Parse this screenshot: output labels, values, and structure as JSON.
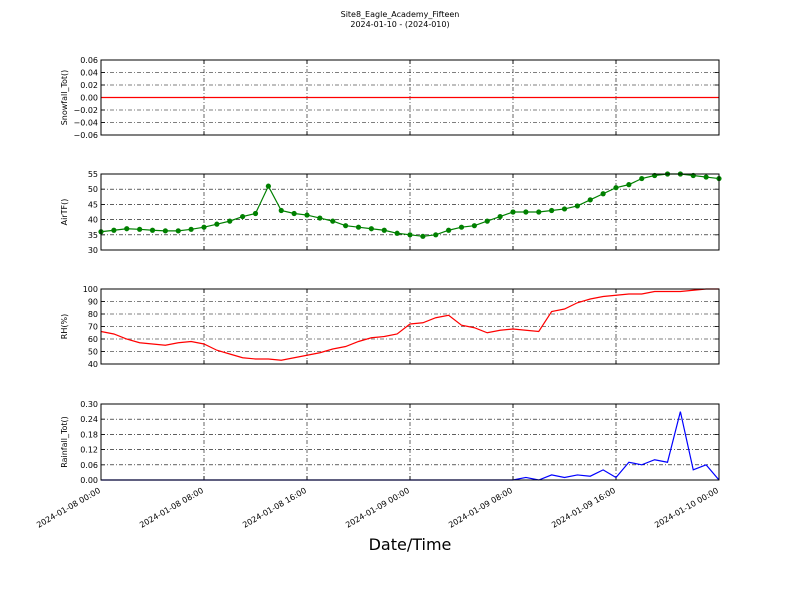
{
  "title": "Site8_Eagle_Academy_Fifteen",
  "subtitle": "2024-01-10 - (2024-010)",
  "chart_data": [
    {
      "type": "line",
      "ylabel": "Snowfall_Tot()",
      "color": "#ff0000",
      "grid": true,
      "x": [
        "2024-01-08 00:00",
        "2024-01-10 00:00"
      ],
      "values": [
        0,
        0
      ],
      "xlim": [
        "2024-01-08 00:00",
        "2024-01-10 00:00"
      ],
      "ylim": [
        -0.06,
        0.06
      ],
      "yticks": [
        {
          "value": -0.06,
          "label": "−0.06"
        },
        {
          "value": -0.04,
          "label": "−0.04"
        },
        {
          "value": -0.02,
          "label": "−0.02"
        },
        {
          "value": 0,
          "label": "0.00"
        },
        {
          "value": 0.02,
          "label": "0.02"
        },
        {
          "value": 0.04,
          "label": "0.04"
        },
        {
          "value": 0.06,
          "label": "0.06"
        }
      ]
    },
    {
      "type": "line",
      "ylabel": "AirTF()",
      "color": "#008000",
      "marker": "o",
      "grid": true,
      "x": [
        "2024-01-08 00:00",
        "2024-01-08 01:00",
        "2024-01-08 02:00",
        "2024-01-08 03:00",
        "2024-01-08 04:00",
        "2024-01-08 05:00",
        "2024-01-08 06:00",
        "2024-01-08 07:00",
        "2024-01-08 08:00",
        "2024-01-08 09:00",
        "2024-01-08 10:00",
        "2024-01-08 11:00",
        "2024-01-08 12:00",
        "2024-01-08 13:00",
        "2024-01-08 14:00",
        "2024-01-08 15:00",
        "2024-01-08 16:00",
        "2024-01-08 17:00",
        "2024-01-08 18:00",
        "2024-01-08 19:00",
        "2024-01-08 20:00",
        "2024-01-08 21:00",
        "2024-01-08 22:00",
        "2024-01-08 23:00",
        "2024-01-09 00:00",
        "2024-01-09 01:00",
        "2024-01-09 02:00",
        "2024-01-09 03:00",
        "2024-01-09 04:00",
        "2024-01-09 05:00",
        "2024-01-09 06:00",
        "2024-01-09 07:00",
        "2024-01-09 08:00",
        "2024-01-09 09:00",
        "2024-01-09 10:00",
        "2024-01-09 11:00",
        "2024-01-09 12:00",
        "2024-01-09 13:00",
        "2024-01-09 14:00",
        "2024-01-09 15:00",
        "2024-01-09 16:00",
        "2024-01-09 17:00",
        "2024-01-09 18:00",
        "2024-01-09 19:00",
        "2024-01-09 20:00",
        "2024-01-09 21:00",
        "2024-01-09 22:00",
        "2024-01-09 23:00",
        "2024-01-10 00:00"
      ],
      "values": [
        36,
        36.5,
        37,
        36.8,
        36.5,
        36.3,
        36.3,
        36.8,
        37.5,
        38.5,
        39.5,
        41,
        42,
        51,
        43,
        42,
        41.5,
        40.5,
        39.5,
        38,
        37.5,
        37,
        36.5,
        35.5,
        35,
        34.5,
        35,
        36.5,
        37.5,
        38,
        39.5,
        41,
        42.5,
        42.5,
        42.5,
        43,
        43.5,
        44.5,
        46.5,
        48.5,
        50.5,
        51.5,
        53.5,
        54.5,
        55,
        55,
        54.5,
        54,
        53.5
      ],
      "xlim": [
        "2024-01-08 00:00",
        "2024-01-10 00:00"
      ],
      "ylim": [
        30,
        55
      ],
      "yticks": [
        30,
        35,
        40,
        45,
        50,
        55
      ]
    },
    {
      "type": "line",
      "ylabel": "RH(%)",
      "color": "#ff0000",
      "grid": true,
      "x": [
        "2024-01-08 00:00",
        "2024-01-08 01:00",
        "2024-01-08 02:00",
        "2024-01-08 03:00",
        "2024-01-08 04:00",
        "2024-01-08 05:00",
        "2024-01-08 06:00",
        "2024-01-08 07:00",
        "2024-01-08 08:00",
        "2024-01-08 09:00",
        "2024-01-08 10:00",
        "2024-01-08 11:00",
        "2024-01-08 12:00",
        "2024-01-08 13:00",
        "2024-01-08 14:00",
        "2024-01-08 15:00",
        "2024-01-08 16:00",
        "2024-01-08 17:00",
        "2024-01-08 18:00",
        "2024-01-08 19:00",
        "2024-01-08 20:00",
        "2024-01-08 21:00",
        "2024-01-08 22:00",
        "2024-01-08 23:00",
        "2024-01-09 00:00",
        "2024-01-09 01:00",
        "2024-01-09 02:00",
        "2024-01-09 03:00",
        "2024-01-09 04:00",
        "2024-01-09 05:00",
        "2024-01-09 06:00",
        "2024-01-09 07:00",
        "2024-01-09 08:00",
        "2024-01-09 09:00",
        "2024-01-09 10:00",
        "2024-01-09 11:00",
        "2024-01-09 12:00",
        "2024-01-09 13:00",
        "2024-01-09 14:00",
        "2024-01-09 15:00",
        "2024-01-09 16:00",
        "2024-01-09 17:00",
        "2024-01-09 18:00",
        "2024-01-09 19:00",
        "2024-01-09 20:00",
        "2024-01-09 21:00",
        "2024-01-09 22:00",
        "2024-01-09 23:00",
        "2024-01-10 00:00"
      ],
      "values": [
        66,
        64,
        60,
        57,
        56,
        55,
        57,
        58,
        56,
        51,
        48,
        45,
        44,
        44,
        43,
        45,
        47,
        49,
        52,
        54,
        58,
        61,
        62,
        64,
        72,
        73,
        77,
        79,
        71,
        69,
        65,
        67,
        68,
        67,
        66,
        82,
        84,
        89,
        92,
        94,
        95,
        96,
        96,
        98,
        98,
        98,
        99,
        100,
        100
      ],
      "xlim": [
        "2024-01-08 00:00",
        "2024-01-10 00:00"
      ],
      "ylim": [
        40,
        100
      ],
      "yticks": [
        40,
        50,
        60,
        70,
        80,
        90,
        100
      ]
    },
    {
      "type": "line",
      "ylabel": "Rainfall_Tot()",
      "xlabel": "Date/Time",
      "color": "#0000ff",
      "grid": true,
      "x": [
        "2024-01-08 00:00",
        "2024-01-08 01:00",
        "2024-01-08 02:00",
        "2024-01-08 03:00",
        "2024-01-08 04:00",
        "2024-01-08 05:00",
        "2024-01-08 06:00",
        "2024-01-08 07:00",
        "2024-01-08 08:00",
        "2024-01-08 09:00",
        "2024-01-08 10:00",
        "2024-01-08 11:00",
        "2024-01-08 12:00",
        "2024-01-08 13:00",
        "2024-01-08 14:00",
        "2024-01-08 15:00",
        "2024-01-08 16:00",
        "2024-01-08 17:00",
        "2024-01-08 18:00",
        "2024-01-08 19:00",
        "2024-01-08 20:00",
        "2024-01-08 21:00",
        "2024-01-08 22:00",
        "2024-01-08 23:00",
        "2024-01-09 00:00",
        "2024-01-09 01:00",
        "2024-01-09 02:00",
        "2024-01-09 03:00",
        "2024-01-09 04:00",
        "2024-01-09 05:00",
        "2024-01-09 06:00",
        "2024-01-09 07:00",
        "2024-01-09 08:00",
        "2024-01-09 09:00",
        "2024-01-09 10:00",
        "2024-01-09 11:00",
        "2024-01-09 12:00",
        "2024-01-09 13:00",
        "2024-01-09 14:00",
        "2024-01-09 15:00",
        "2024-01-09 16:00",
        "2024-01-09 17:00",
        "2024-01-09 18:00",
        "2024-01-09 19:00",
        "2024-01-09 20:00",
        "2024-01-09 21:00",
        "2024-01-09 22:00",
        "2024-01-09 23:00",
        "2024-01-10 00:00"
      ],
      "values": [
        0,
        0,
        0,
        0,
        0,
        0,
        0,
        0,
        0,
        0,
        0,
        0,
        0,
        0,
        0,
        0,
        0,
        0,
        0,
        0,
        0,
        0,
        0,
        0,
        0,
        0,
        0,
        0,
        0,
        0,
        0,
        0,
        0,
        0.01,
        0,
        0.02,
        0.01,
        0.02,
        0.015,
        0.04,
        0.01,
        0.07,
        0.06,
        0.08,
        0.07,
        0.27,
        0.04,
        0.06,
        0
      ],
      "xlim": [
        "2024-01-08 00:00",
        "2024-01-10 00:00"
      ],
      "xticks": [
        "2024-01-08 00:00",
        "2024-01-08 08:00",
        "2024-01-08 16:00",
        "2024-01-09 00:00",
        "2024-01-09 08:00",
        "2024-01-09 16:00",
        "2024-01-10 00:00"
      ],
      "ylim": [
        0,
        0.3
      ],
      "yticks": [
        {
          "value": 0,
          "label": "0.00"
        },
        {
          "value": 0.06,
          "label": "0.06"
        },
        {
          "value": 0.12,
          "label": "0.12"
        },
        {
          "value": 0.18,
          "label": "0.18"
        },
        {
          "value": 0.24,
          "label": "0.24"
        },
        {
          "value": 0.3,
          "label": "0.30"
        }
      ]
    }
  ]
}
